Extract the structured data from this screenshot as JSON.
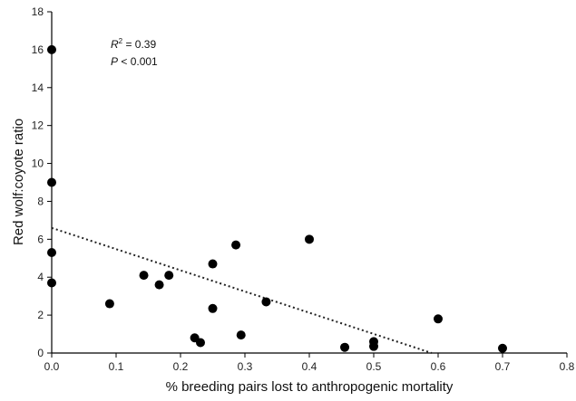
{
  "chart_data": {
    "type": "scatter",
    "title": "",
    "xlabel": "% breeding pairs lost to anthropogenic mortality",
    "ylabel": "Red wolf:coyote ratio",
    "xlim": [
      0,
      0.8
    ],
    "ylim": [
      0,
      18
    ],
    "xticks": [
      "0.0",
      "0.1",
      "0.2",
      "0.3",
      "0.4",
      "0.5",
      "0.6",
      "0.7",
      "0.8"
    ],
    "yticks": [
      "0",
      "2",
      "4",
      "6",
      "8",
      "10",
      "12",
      "14",
      "16",
      "18"
    ],
    "grid": false,
    "points": [
      {
        "x": 0.0,
        "y": 16.0
      },
      {
        "x": 0.0,
        "y": 9.0
      },
      {
        "x": 0.0,
        "y": 5.3
      },
      {
        "x": 0.0,
        "y": 3.7
      },
      {
        "x": 0.09,
        "y": 2.6
      },
      {
        "x": 0.143,
        "y": 4.1
      },
      {
        "x": 0.167,
        "y": 3.6
      },
      {
        "x": 0.182,
        "y": 4.1
      },
      {
        "x": 0.222,
        "y": 0.8
      },
      {
        "x": 0.231,
        "y": 0.55
      },
      {
        "x": 0.25,
        "y": 4.7
      },
      {
        "x": 0.25,
        "y": 2.35
      },
      {
        "x": 0.286,
        "y": 5.7
      },
      {
        "x": 0.294,
        "y": 0.95
      },
      {
        "x": 0.333,
        "y": 2.7
      },
      {
        "x": 0.4,
        "y": 6.0
      },
      {
        "x": 0.455,
        "y": 0.3
      },
      {
        "x": 0.5,
        "y": 0.6
      },
      {
        "x": 0.5,
        "y": 0.35
      },
      {
        "x": 0.6,
        "y": 1.8
      },
      {
        "x": 0.7,
        "y": 0.25
      }
    ],
    "trendline": {
      "style": "dotted",
      "x": [
        0.0,
        0.59
      ],
      "y": [
        6.6,
        0.0
      ]
    },
    "annotations": {
      "r2_label": "R² = 0.39",
      "p_label": "P < 0.001"
    }
  }
}
